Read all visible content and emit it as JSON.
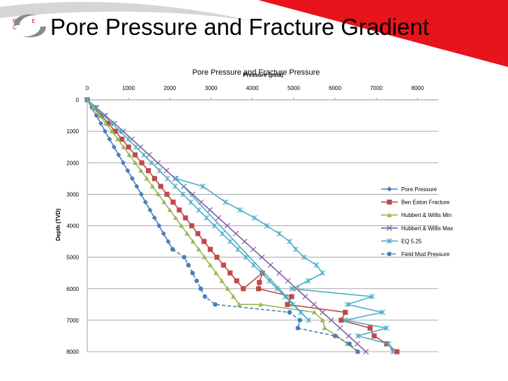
{
  "slide": {
    "title": "Pore Pressure and Fracture Gradient",
    "logo_text": "P E C",
    "accent": "#e8131b"
  },
  "chart_data": {
    "type": "line",
    "title": "Pore Pressure and Fracture Pressure",
    "xlabel": "Pressure (psia)",
    "ylabel": "Depth (TVD)",
    "xlim": [
      0,
      8500
    ],
    "ylim": [
      8000,
      0
    ],
    "x_axis_position": "top",
    "x_ticks": [
      0,
      1000,
      2000,
      3000,
      4000,
      5000,
      6000,
      7000,
      8000
    ],
    "y_ticks": [
      0,
      1000,
      2000,
      3000,
      4000,
      5000,
      6000,
      7000,
      8000
    ],
    "grid": "horizontal",
    "legend": "right",
    "series": [
      {
        "name": "Pore Pressure",
        "color": "#4a7ebb",
        "marker": "diamond",
        "dash": false,
        "points": [
          [
            0,
            0
          ],
          [
            110,
            250
          ],
          [
            220,
            500
          ],
          [
            330,
            750
          ],
          [
            430,
            1000
          ],
          [
            540,
            1250
          ],
          [
            650,
            1500
          ],
          [
            760,
            1750
          ],
          [
            870,
            2000
          ],
          [
            980,
            2250
          ],
          [
            1090,
            2500
          ],
          [
            1200,
            2750
          ],
          [
            1310,
            3000
          ],
          [
            1410,
            3250
          ],
          [
            1520,
            3500
          ],
          [
            1630,
            3750
          ],
          [
            1740,
            4000
          ],
          [
            1850,
            4250
          ],
          [
            1960,
            4500
          ],
          [
            2070,
            4750
          ]
        ]
      },
      {
        "name": "Ben Eaton Fracture",
        "color": "#be4b48",
        "marker": "square",
        "dash": false,
        "points": [
          [
            0,
            0
          ],
          [
            170,
            250
          ],
          [
            340,
            500
          ],
          [
            510,
            750
          ],
          [
            680,
            1000
          ],
          [
            840,
            1250
          ],
          [
            1000,
            1500
          ],
          [
            1160,
            1750
          ],
          [
            1320,
            2000
          ],
          [
            1480,
            2250
          ],
          [
            1630,
            2500
          ],
          [
            1780,
            2750
          ],
          [
            1930,
            3000
          ],
          [
            2080,
            3250
          ],
          [
            2230,
            3500
          ],
          [
            2380,
            3750
          ],
          [
            2530,
            4000
          ],
          [
            2680,
            4250
          ],
          [
            2830,
            4500
          ],
          [
            2980,
            4750
          ],
          [
            3140,
            5000
          ],
          [
            3300,
            5250
          ],
          [
            3460,
            5500
          ],
          [
            3620,
            5750
          ],
          [
            3780,
            6000
          ],
          [
            4240,
            5500
          ],
          [
            4170,
            5800
          ],
          [
            4150,
            6000
          ],
          [
            4950,
            6250
          ],
          [
            4850,
            6500
          ],
          [
            6250,
            6750
          ],
          [
            6150,
            7000
          ],
          [
            6850,
            7250
          ],
          [
            6950,
            7500
          ],
          [
            7250,
            7750
          ],
          [
            7500,
            8000
          ]
        ]
      },
      {
        "name": "Hubbert & Willis Min",
        "color": "#98b954",
        "marker": "triangle",
        "dash": false,
        "points": [
          [
            0,
            0
          ],
          [
            150,
            250
          ],
          [
            300,
            500
          ],
          [
            450,
            750
          ],
          [
            600,
            1000
          ],
          [
            740,
            1250
          ],
          [
            880,
            1500
          ],
          [
            1020,
            1750
          ],
          [
            1160,
            2000
          ],
          [
            1300,
            2250
          ],
          [
            1440,
            2500
          ],
          [
            1580,
            2750
          ],
          [
            1720,
            3000
          ],
          [
            1860,
            3250
          ],
          [
            2000,
            3500
          ],
          [
            2140,
            3750
          ],
          [
            2280,
            4000
          ],
          [
            2420,
            4250
          ],
          [
            2560,
            4500
          ],
          [
            2700,
            4750
          ],
          [
            2840,
            5000
          ],
          [
            2980,
            5250
          ],
          [
            3120,
            5500
          ],
          [
            3260,
            5750
          ],
          [
            3400,
            6000
          ],
          [
            3540,
            6250
          ],
          [
            3680,
            6500
          ],
          [
            4200,
            6500
          ],
          [
            5500,
            6750
          ],
          [
            5700,
            7000
          ],
          [
            5750,
            7250
          ],
          [
            6050,
            7500
          ],
          [
            6300,
            7750
          ],
          [
            6550,
            8000
          ]
        ]
      },
      {
        "name": "Hubbert & Willis Max",
        "color": "#7d60a0",
        "marker": "x",
        "dash": false,
        "points": [
          [
            0,
            0
          ],
          [
            220,
            250
          ],
          [
            440,
            500
          ],
          [
            660,
            750
          ],
          [
            870,
            1000
          ],
          [
            1080,
            1250
          ],
          [
            1290,
            1500
          ],
          [
            1500,
            1750
          ],
          [
            1710,
            2000
          ],
          [
            1920,
            2250
          ],
          [
            2130,
            2500
          ],
          [
            2340,
            2750
          ],
          [
            2550,
            3000
          ],
          [
            2760,
            3250
          ],
          [
            2970,
            3500
          ],
          [
            3180,
            3750
          ],
          [
            3390,
            4000
          ],
          [
            3600,
            4250
          ],
          [
            3810,
            4500
          ],
          [
            4020,
            4750
          ],
          [
            4230,
            5000
          ],
          [
            4440,
            5250
          ],
          [
            4650,
            5500
          ],
          [
            4860,
            5750
          ],
          [
            5070,
            6000
          ],
          [
            5280,
            6250
          ],
          [
            5490,
            6500
          ],
          [
            5700,
            6750
          ],
          [
            5910,
            7000
          ],
          [
            6120,
            7250
          ],
          [
            6330,
            7500
          ],
          [
            6540,
            7750
          ],
          [
            6750,
            8000
          ]
        ]
      },
      {
        "name": "EQ 5.25",
        "color": "#4bacc6",
        "marker": "star",
        "dash": false,
        "points": [
          [
            0,
            0
          ],
          [
            200,
            250
          ],
          [
            400,
            500
          ],
          [
            600,
            750
          ],
          [
            800,
            1000
          ],
          [
            990,
            1250
          ],
          [
            1180,
            1500
          ],
          [
            1370,
            1750
          ],
          [
            1560,
            2000
          ],
          [
            1750,
            2250
          ],
          [
            1940,
            2500
          ],
          [
            2130,
            2750
          ],
          [
            2320,
            3000
          ],
          [
            2510,
            3250
          ],
          [
            2700,
            3500
          ],
          [
            2890,
            3750
          ],
          [
            3080,
            4000
          ],
          [
            3270,
            4250
          ],
          [
            3460,
            4500
          ],
          [
            3650,
            4750
          ],
          [
            3840,
            5000
          ],
          [
            4030,
            5250
          ],
          [
            4220,
            5500
          ],
          [
            4410,
            5750
          ],
          [
            4600,
            6000
          ],
          [
            4790,
            6250
          ],
          [
            4980,
            6500
          ],
          [
            5170,
            6750
          ],
          [
            5360,
            7000
          ],
          [
            2150,
            2500
          ],
          [
            2800,
            2750
          ],
          [
            3350,
            3250
          ],
          [
            3700,
            3500
          ],
          [
            4050,
            3750
          ],
          [
            4350,
            4000
          ],
          [
            4650,
            4250
          ],
          [
            4900,
            4500
          ],
          [
            5050,
            4750
          ],
          [
            5250,
            5000
          ],
          [
            5550,
            5250
          ],
          [
            5700,
            5500
          ],
          [
            5350,
            5750
          ],
          [
            4950,
            6000
          ],
          [
            6900,
            6250
          ],
          [
            6300,
            6500
          ],
          [
            7150,
            6750
          ],
          [
            6250,
            7000
          ],
          [
            7250,
            7250
          ],
          [
            6550,
            7500
          ],
          [
            7300,
            7750
          ],
          [
            7400,
            8000
          ]
        ]
      },
      {
        "name": "Field Mud Pressure",
        "color": "#4a7ebb",
        "marker": "circle",
        "dash": true,
        "points": [
          [
            2070,
            4750
          ],
          [
            2350,
            5000
          ],
          [
            2450,
            5250
          ],
          [
            2550,
            5500
          ],
          [
            2650,
            5750
          ],
          [
            2750,
            6000
          ],
          [
            2850,
            6250
          ],
          [
            3100,
            6500
          ],
          [
            4900,
            6750
          ],
          [
            5150,
            7000
          ],
          [
            5100,
            7250
          ],
          [
            6000,
            7500
          ],
          [
            6350,
            7750
          ],
          [
            6550,
            8000
          ]
        ]
      }
    ]
  }
}
